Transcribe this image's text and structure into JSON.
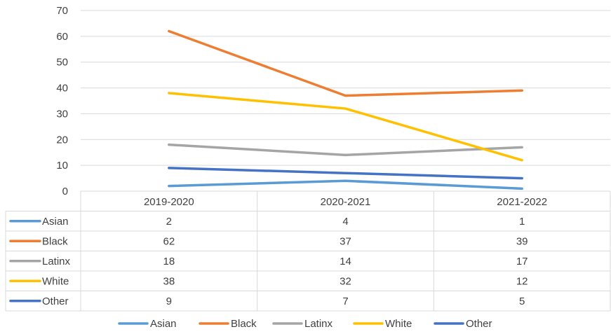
{
  "chart_data": {
    "type": "line",
    "title": "",
    "xlabel": "",
    "ylabel": "",
    "categories": [
      "2019-2020",
      "2020-2021",
      "2021-2022"
    ],
    "yticks": [
      0,
      10,
      20,
      30,
      40,
      50,
      60,
      70
    ],
    "ylim": [
      0,
      70
    ],
    "grid": true,
    "legend_position": "bottom",
    "data_table": true,
    "series": [
      {
        "name": "Asian",
        "values": [
          2,
          4,
          1
        ],
        "color": "#5b9bd5"
      },
      {
        "name": "Black",
        "values": [
          62,
          37,
          39
        ],
        "color": "#ed7d31"
      },
      {
        "name": "Latinx",
        "values": [
          18,
          14,
          17
        ],
        "color": "#a5a5a5"
      },
      {
        "name": "White",
        "values": [
          38,
          32,
          12
        ],
        "color": "#ffc000"
      },
      {
        "name": "Other",
        "values": [
          9,
          7,
          5
        ],
        "color": "#4472c4"
      }
    ]
  }
}
